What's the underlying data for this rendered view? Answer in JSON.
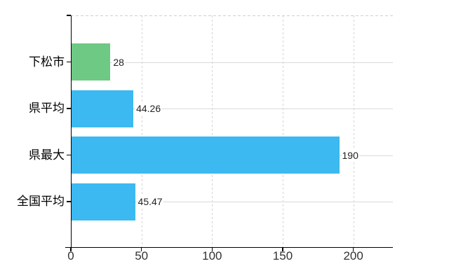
{
  "chart_data": {
    "type": "bar",
    "orientation": "horizontal",
    "title": "",
    "xlabel": "",
    "ylabel": "",
    "categories": [
      "下松市",
      "県平均",
      "県最大",
      "全国平均"
    ],
    "values": [
      28,
      44.26,
      190,
      45.47
    ],
    "value_labels": [
      "28",
      "44.26",
      "190",
      "45.47"
    ],
    "bar_colors": [
      "#6dc983",
      "#3cb9f0",
      "#3cb9f0",
      "#3cb9f0"
    ],
    "x_ticks": [
      0,
      50,
      100,
      150,
      200
    ],
    "xlim": [
      0,
      228
    ],
    "grid": "vertical-dashed-and-horizontal-solid",
    "legend": "none"
  },
  "colors": {
    "highlight_bar": "#6dc983",
    "default_bar": "#3cb9f0",
    "axis": "#000000",
    "solid_gridline": "#d9d9d9",
    "dashed_gridline": "#d4d4d4",
    "text": "#333333",
    "background": "#ffffff"
  }
}
